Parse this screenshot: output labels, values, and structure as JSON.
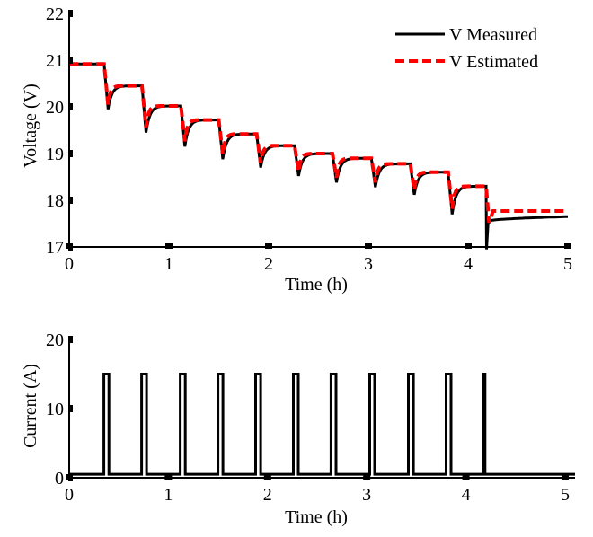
{
  "chart_data": [
    {
      "type": "line",
      "xlabel": "Time (h)",
      "ylabel": "Voltage (V)",
      "xlim": [
        0,
        5
      ],
      "ylim": [
        17,
        22
      ],
      "xticks": [
        0,
        1,
        2,
        3,
        4,
        5
      ],
      "yticks": [
        17,
        18,
        19,
        20,
        21,
        22
      ],
      "grid": false,
      "legend": "top-right",
      "rest_levels": [
        20.92,
        20.45,
        20.02,
        19.72,
        19.42,
        19.17,
        19.0,
        18.9,
        18.78,
        18.6,
        18.3
      ],
      "drop_minima": [
        19.95,
        19.45,
        19.15,
        18.88,
        18.7,
        18.52,
        18.38,
        18.28,
        18.12,
        17.7,
        16.95
      ],
      "pulse_start_times": [
        0.35,
        0.73,
        1.12,
        1.5,
        1.88,
        2.26,
        2.64,
        3.03,
        3.42,
        3.8,
        4.18
      ],
      "final_measured": [
        17.55,
        17.65
      ],
      "final_estimated": 17.77,
      "series": [
        {
          "name": "V Measured",
          "color": "#000000",
          "style": "solid",
          "recover": 0.35
        },
        {
          "name": "V Estimated",
          "color": "#ff0000",
          "style": "dashed",
          "recover": 0.15
        }
      ]
    },
    {
      "type": "line",
      "xlabel": "Time (h)",
      "ylabel": "Current (A)",
      "xlim": [
        0,
        5.1
      ],
      "ylim": [
        0,
        20
      ],
      "xticks": [
        0,
        1,
        2,
        3,
        4,
        5
      ],
      "yticks": [
        0,
        10,
        20
      ],
      "grid": false,
      "pulse_amplitude": 15,
      "pulse_width_h": 0.05,
      "pulse_start_times": [
        0.35,
        0.73,
        1.12,
        1.5,
        1.88,
        2.26,
        2.64,
        3.03,
        3.42,
        3.8,
        4.18
      ],
      "baseline": 0.5,
      "series": [
        {
          "color": "#000000",
          "style": "solid"
        }
      ]
    }
  ]
}
